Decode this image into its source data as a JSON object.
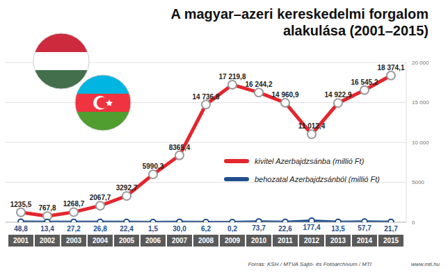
{
  "chart_data": {
    "type": "line",
    "title": "A magyar–azeri kereskedelmi forgalom alakulása (2001–2015)",
    "categories": [
      "2001",
      "2002",
      "2003",
      "2004",
      "2005",
      "2006",
      "2007",
      "2008",
      "2009",
      "2010",
      "2011",
      "2012",
      "2013",
      "2014",
      "2015"
    ],
    "series": [
      {
        "name": "kivitel Azerbajdzsánba (millió Ft)",
        "color": "#e3262d",
        "marker": "circle",
        "values": [
          1235.5,
          767.8,
          1268.7,
          2067.7,
          3292.7,
          5990.3,
          8365.4,
          14736.8,
          17219.8,
          16244.2,
          14960.9,
          11012.4,
          14922.9,
          16545.2,
          18374.1
        ],
        "value_labels": [
          "1235,5",
          "767,8",
          "1268,7",
          "2067,7",
          "3292,7",
          "5990,3",
          "8365,4",
          "14 736,8",
          "17 219,8",
          "16 244,2",
          "14 960,9",
          "11 012,4",
          "14 922,9",
          "16 545,2",
          "18 374,1"
        ]
      },
      {
        "name": "behozatal Azerbajdzsánból (millió Ft)",
        "color": "#1f4e8c",
        "marker": "circle",
        "values": [
          48.8,
          13.4,
          27.2,
          26.8,
          22.4,
          1.5,
          30.0,
          6.2,
          0.2,
          73.7,
          22.6,
          177.4,
          13.5,
          57.7,
          21.7
        ],
        "value_labels": [
          "48,8",
          "13,4",
          "27,2",
          "26,8",
          "22,4",
          "1,5",
          "30,0",
          "6,2",
          "0,2",
          "73,7",
          "22,6",
          "177,4",
          "13,5",
          "57,7",
          "21,7"
        ]
      }
    ],
    "ylim": [
      0,
      20000
    ],
    "yticks": [
      0,
      5000,
      {
        "value": 10000,
        "label": "10 000"
      },
      {
        "value": 15000,
        "label": "15 000"
      },
      {
        "value": 20000,
        "label": "20 000"
      }
    ],
    "grid": true,
    "data_labels": true,
    "legend": "right",
    "source": "Forrás: KSH / MTVA Sajtó- és Fotóarchívum / MTI",
    "website": "www.mti.hu"
  }
}
